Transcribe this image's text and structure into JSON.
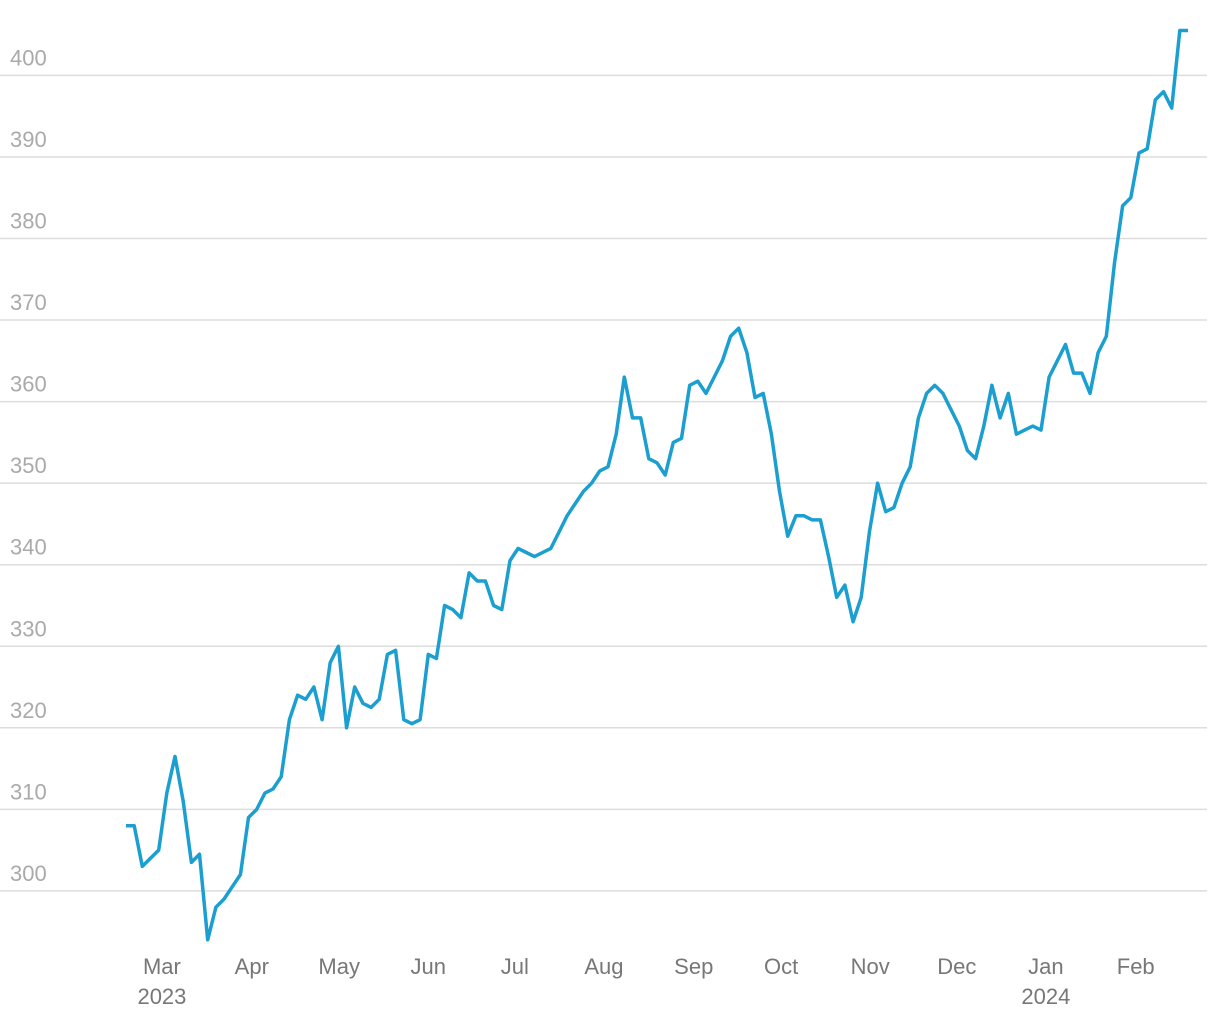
{
  "chart_data": {
    "type": "line",
    "series": [
      {
        "color": "#1a9fd0",
        "values": [
          308,
          308,
          303,
          304,
          305,
          312,
          316.5,
          311,
          303.5,
          304.5,
          294,
          298,
          299,
          300.5,
          302,
          309,
          310,
          312,
          312.5,
          314,
          321,
          324,
          323.5,
          325,
          321,
          328,
          330,
          320,
          325,
          323,
          322.5,
          323.5,
          329,
          329.5,
          321,
          320.5,
          321,
          329,
          328.5,
          335,
          334.5,
          333.5,
          339,
          338,
          338,
          335,
          334.5,
          340.5,
          342,
          341.5,
          341,
          341.5,
          342,
          344,
          346,
          347.5,
          349,
          350,
          351.5,
          352,
          356,
          363,
          358,
          358,
          353,
          352.5,
          351,
          355,
          355.5,
          362,
          362.5,
          361,
          363,
          365,
          368,
          369,
          366,
          360.5,
          361,
          356,
          349,
          343.5,
          346,
          346,
          345.5,
          345.5,
          341,
          336,
          337.5,
          333,
          336,
          344,
          350,
          346.5,
          347,
          350,
          352,
          358,
          361,
          362,
          361,
          359,
          357,
          354,
          353,
          357,
          362,
          358,
          361,
          356,
          356.5,
          357,
          356.5,
          363,
          365,
          367,
          363.5,
          363.5,
          361,
          366,
          368,
          377,
          384,
          385,
          390.5,
          391,
          397,
          398,
          396,
          405.5,
          405.5
        ]
      }
    ],
    "xlim": [
      0,
      130
    ],
    "xticks": [
      {
        "value": 4.4,
        "label": "Mar"
      },
      {
        "value": 15.4,
        "label": "Apr"
      },
      {
        "value": 26.1,
        "label": "May"
      },
      {
        "value": 37,
        "label": "Jun"
      },
      {
        "value": 47.6,
        "label": "Jul"
      },
      {
        "value": 58.5,
        "label": "Aug"
      },
      {
        "value": 69.5,
        "label": "Sep"
      },
      {
        "value": 80.2,
        "label": "Oct"
      },
      {
        "value": 91.1,
        "label": "Nov"
      },
      {
        "value": 101.7,
        "label": "Dec"
      },
      {
        "value": 112.6,
        "label": "Jan"
      },
      {
        "value": 123.6,
        "label": "Feb"
      }
    ],
    "xtick_years": [
      {
        "value": 4.4,
        "label": "2023"
      },
      {
        "value": 112.6,
        "label": "2024"
      }
    ],
    "ylim": [
      293,
      409
    ],
    "yticks": [
      300,
      310,
      320,
      330,
      340,
      350,
      360,
      370,
      380,
      390,
      400
    ],
    "grid": true
  }
}
